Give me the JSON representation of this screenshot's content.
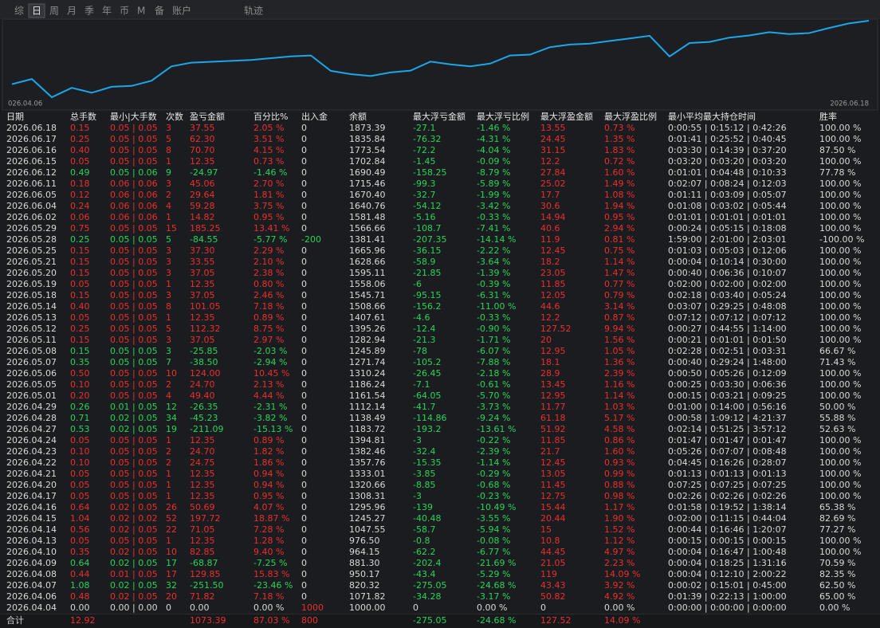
{
  "tabs": [
    "综",
    "日",
    "周",
    "月",
    "季",
    "年",
    "币",
    "M",
    "备",
    "账户"
  ],
  "active_tab": 1,
  "track_tab": "轨迹",
  "chart": {
    "start_label": "026.04.06",
    "end_label": "2026.06.18",
    "line_color": "#1ba6ea"
  },
  "colors": {
    "profit": "#e8302e",
    "loss": "#27d35a",
    "neutral": "#d8d8d8"
  },
  "table": {
    "columns": [
      "日期",
      "总手数",
      "最小|大手数",
      "次数",
      "盈亏金额",
      "百分比%",
      "出入金",
      "余额",
      "最大浮亏金额",
      "最大浮亏比例",
      "最大浮盈金额",
      "最大浮盈比例",
      "最小平均最大持仓时间",
      "胜率"
    ],
    "rows": [
      [
        "2026.06.18",
        "0.15",
        "0.05 | 0.05",
        "3",
        "37.55",
        "2.05 %",
        "0",
        "1873.39",
        "-27.1",
        "-1.46 %",
        "13.55",
        "0.73 %",
        "0:00:55 | 0:15:12 | 0:42:26",
        "100.00 %"
      ],
      [
        "2026.06.17",
        "0.25",
        "0.05 | 0.05",
        "5",
        "62.30",
        "3.51 %",
        "0",
        "1835.84",
        "-76.32",
        "-4.31 %",
        "24.45",
        "1.35 %",
        "0:01:41 | 0:25:52 | 0:40:45",
        "100.00 %"
      ],
      [
        "2026.06.16",
        "0.40",
        "0.05 | 0.05",
        "8",
        "70.70",
        "4.15 %",
        "0",
        "1773.54",
        "-72.2",
        "-4.04 %",
        "31.15",
        "1.83 %",
        "0:03:30 | 0:14:39 | 0:37:20",
        "87.50 %"
      ],
      [
        "2026.06.15",
        "0.05",
        "0.05 | 0.05",
        "1",
        "12.35",
        "0.73 %",
        "0",
        "1702.84",
        "-1.45",
        "-0.09 %",
        "12.2",
        "0.72 %",
        "0:03:20 | 0:03:20 | 0:03:20",
        "100.00 %"
      ],
      [
        "2026.06.12",
        "0.49",
        "0.05 | 0.06",
        "9",
        "-24.97",
        "-1.46 %",
        "0",
        "1690.49",
        "-158.25",
        "-8.79 %",
        "27.84",
        "1.60 %",
        "0:01:01 | 0:04:48 | 0:10:33",
        "77.78 %"
      ],
      [
        "2026.06.11",
        "0.18",
        "0.06 | 0.06",
        "3",
        "45.06",
        "2.70 %",
        "0",
        "1715.46",
        "-99.3",
        "-5.89 %",
        "25.02",
        "1.49 %",
        "0:02:07 | 0:08:24 | 0:12:03",
        "100.00 %"
      ],
      [
        "2026.06.05",
        "0.12",
        "0.06 | 0.06",
        "2",
        "29.64",
        "1.81 %",
        "0",
        "1670.40",
        "-32.7",
        "-1.99 %",
        "17.7",
        "1.08 %",
        "0:01:11 | 0:03:09 | 0:05:07",
        "100.00 %"
      ],
      [
        "2026.06.04",
        "0.24",
        "0.06 | 0.06",
        "4",
        "59.28",
        "3.75 %",
        "0",
        "1640.76",
        "-54.12",
        "-3.42 %",
        "30.6",
        "1.94 %",
        "0:01:08 | 0:03:02 | 0:05:44",
        "100.00 %"
      ],
      [
        "2026.06.02",
        "0.06",
        "0.06 | 0.06",
        "1",
        "14.82",
        "0.95 %",
        "0",
        "1581.48",
        "-5.16",
        "-0.33 %",
        "14.94",
        "0.95 %",
        "0:01:01 | 0:01:01 | 0:01:01",
        "100.00 %"
      ],
      [
        "2026.05.29",
        "0.75",
        "0.05 | 0.05",
        "15",
        "185.25",
        "13.41 %",
        "0",
        "1566.66",
        "-108.7",
        "-7.41 %",
        "40.6",
        "2.94 %",
        "0:00:24 | 0:05:15 | 0:18:08",
        "100.00 %"
      ],
      [
        "2026.05.28",
        "0.25",
        "0.05 | 0.05",
        "5",
        "-84.55",
        "-5.77 %",
        "-200",
        "1381.41",
        "-207.35",
        "-14.14 %",
        "11.9",
        "0.81 %",
        "1:59:00 | 2:01:00 | 2:03:01",
        "-100.00 %"
      ],
      [
        "2026.05.25",
        "0.15",
        "0.05 | 0.05",
        "3",
        "37.30",
        "2.29 %",
        "0",
        "1665.96",
        "-36.15",
        "-2.22 %",
        "12.45",
        "0.75 %",
        "0:01:03 | 0:05:03 | 0:12:06",
        "100.00 %"
      ],
      [
        "2026.05.21",
        "0.15",
        "0.05 | 0.05",
        "3",
        "33.55",
        "2.10 %",
        "0",
        "1628.66",
        "-58.9",
        "-3.64 %",
        "18.2",
        "1.14 %",
        "0:00:04 | 0:10:14 | 0:30:00",
        "100.00 %"
      ],
      [
        "2026.05.20",
        "0.15",
        "0.05 | 0.05",
        "3",
        "37.05",
        "2.38 %",
        "0",
        "1595.11",
        "-21.85",
        "-1.39 %",
        "23.05",
        "1.47 %",
        "0:00:40 | 0:06:36 | 0:10:07",
        "100.00 %"
      ],
      [
        "2026.05.19",
        "0.05",
        "0.05 | 0.05",
        "1",
        "12.35",
        "0.80 %",
        "0",
        "1558.06",
        "-6",
        "-0.39 %",
        "11.85",
        "0.77 %",
        "0:02:00 | 0:02:00 | 0:02:00",
        "100.00 %"
      ],
      [
        "2026.05.18",
        "0.15",
        "0.05 | 0.05",
        "3",
        "37.05",
        "2.46 %",
        "0",
        "1545.71",
        "-95.15",
        "-6.31 %",
        "12.05",
        "0.79 %",
        "0:02:18 | 0:03:40 | 0:05:24",
        "100.00 %"
      ],
      [
        "2026.05.14",
        "0.40",
        "0.05 | 0.05",
        "8",
        "101.05",
        "7.18 %",
        "0",
        "1508.66",
        "-156.2",
        "-11.00 %",
        "44.6",
        "3.14 %",
        "0:03:07 | 0:29:25 | 0:48:08",
        "100.00 %"
      ],
      [
        "2026.05.13",
        "0.05",
        "0.05 | 0.05",
        "1",
        "12.35",
        "0.89 %",
        "0",
        "1407.61",
        "-4.6",
        "-0.33 %",
        "12.2",
        "0.87 %",
        "0:07:12 | 0:07:12 | 0:07:12",
        "100.00 %"
      ],
      [
        "2026.05.12",
        "0.25",
        "0.05 | 0.05",
        "5",
        "112.32",
        "8.75 %",
        "0",
        "1395.26",
        "-12.4",
        "-0.90 %",
        "127.52",
        "9.94 %",
        "0:00:27 | 0:44:55 | 1:14:00",
        "100.00 %"
      ],
      [
        "2026.05.11",
        "0.15",
        "0.05 | 0.05",
        "3",
        "37.05",
        "2.97 %",
        "0",
        "1282.94",
        "-21.3",
        "-1.71 %",
        "20",
        "1.56 %",
        "0:00:21 | 0:01:01 | 0:01:50",
        "100.00 %"
      ],
      [
        "2026.05.08",
        "0.15",
        "0.05 | 0.05",
        "3",
        "-25.85",
        "-2.03 %",
        "0",
        "1245.89",
        "-78",
        "-6.07 %",
        "12.95",
        "1.05 %",
        "0:02:28 | 0:02:51 | 0:03:31",
        "66.67 %"
      ],
      [
        "2026.05.07",
        "0.35",
        "0.05 | 0.05",
        "7",
        "-38.50",
        "-2.94 %",
        "0",
        "1271.74",
        "-105.2",
        "-7.88 %",
        "18.1",
        "1.36 %",
        "0:00:40 | 0:29:24 | 1:48:00",
        "71.43 %"
      ],
      [
        "2026.05.06",
        "0.50",
        "0.05 | 0.05",
        "10",
        "124.00",
        "10.45 %",
        "0",
        "1310.24",
        "-26.45",
        "-2.18 %",
        "28.9",
        "2.39 %",
        "0:00:50 | 0:05:26 | 0:12:09",
        "100.00 %"
      ],
      [
        "2026.05.05",
        "0.10",
        "0.05 | 0.05",
        "2",
        "24.70",
        "2.13 %",
        "0",
        "1186.24",
        "-7.1",
        "-0.61 %",
        "13.45",
        "1.16 %",
        "0:00:25 | 0:03:30 | 0:06:36",
        "100.00 %"
      ],
      [
        "2026.05.01",
        "0.20",
        "0.05 | 0.05",
        "4",
        "49.40",
        "4.44 %",
        "0",
        "1161.54",
        "-64.05",
        "-5.70 %",
        "12.95",
        "1.14 %",
        "0:00:15 | 0:03:21 | 0:09:25",
        "100.00 %"
      ],
      [
        "2026.04.29",
        "0.26",
        "0.01 | 0.05",
        "12",
        "-26.35",
        "-2.31 %",
        "0",
        "1112.14",
        "-41.7",
        "-3.73 %",
        "11.77",
        "1.03 %",
        "0:01:00 | 0:14:00 | 0:56:16",
        "50.00 %"
      ],
      [
        "2026.04.28",
        "0.71",
        "0.02 | 0.05",
        "34",
        "-45.23",
        "-3.82 %",
        "0",
        "1138.49",
        "-114.86",
        "-9.24 %",
        "61.18",
        "5.17 %",
        "0:00:58 | 1:09:12 | 4:21:37",
        "55.88 %"
      ],
      [
        "2026.04.27",
        "0.53",
        "0.02 | 0.05",
        "19",
        "-211.09",
        "-15.13 %",
        "0",
        "1183.72",
        "-193.2",
        "-13.61 %",
        "51.92",
        "4.58 %",
        "0:02:14 | 0:51:25 | 3:57:12",
        "52.63 %"
      ],
      [
        "2026.04.24",
        "0.05",
        "0.05 | 0.05",
        "1",
        "12.35",
        "0.89 %",
        "0",
        "1394.81",
        "-3",
        "-0.22 %",
        "11.85",
        "0.86 %",
        "0:01:47 | 0:01:47 | 0:01:47",
        "100.00 %"
      ],
      [
        "2026.04.23",
        "0.10",
        "0.05 | 0.05",
        "2",
        "24.70",
        "1.82 %",
        "0",
        "1382.46",
        "-32.4",
        "-2.39 %",
        "21.7",
        "1.60 %",
        "0:05:26 | 0:07:07 | 0:08:48",
        "100.00 %"
      ],
      [
        "2026.04.22",
        "0.10",
        "0.05 | 0.05",
        "2",
        "24.75",
        "1.86 %",
        "0",
        "1357.76",
        "-15.35",
        "-1.14 %",
        "12.45",
        "0.93 %",
        "0:04:45 | 0:16:26 | 0:28:07",
        "100.00 %"
      ],
      [
        "2026.04.21",
        "0.05",
        "0.05 | 0.05",
        "1",
        "12.35",
        "0.94 %",
        "0",
        "1333.01",
        "-3.85",
        "-0.29 %",
        "13.05",
        "0.99 %",
        "0:01:13 | 0:01:13 | 0:01:13",
        "100.00 %"
      ],
      [
        "2026.04.20",
        "0.05",
        "0.05 | 0.05",
        "1",
        "12.35",
        "0.94 %",
        "0",
        "1320.66",
        "-8.85",
        "-0.68 %",
        "11.45",
        "0.88 %",
        "0:07:25 | 0:07:25 | 0:07:25",
        "100.00 %"
      ],
      [
        "2026.04.17",
        "0.05",
        "0.05 | 0.05",
        "1",
        "12.35",
        "0.95 %",
        "0",
        "1308.31",
        "-3",
        "-0.23 %",
        "12.75",
        "0.98 %",
        "0:02:26 | 0:02:26 | 0:02:26",
        "100.00 %"
      ],
      [
        "2026.04.16",
        "0.64",
        "0.02 | 0.05",
        "26",
        "50.69",
        "4.07 %",
        "0",
        "1295.96",
        "-139",
        "-10.49 %",
        "15.44",
        "1.17 %",
        "0:01:58 | 0:19:52 | 1:38:14",
        "65.38 %"
      ],
      [
        "2026.04.15",
        "1.04",
        "0.02 | 0.02",
        "52",
        "197.72",
        "18.87 %",
        "0",
        "1245.27",
        "-40.48",
        "-3.55 %",
        "20.44",
        "1.90 %",
        "0:02:00 | 0:11:15 | 0:44:04",
        "82.69 %"
      ],
      [
        "2026.04.14",
        "0.56",
        "0.02 | 0.05",
        "22",
        "71.05",
        "7.28 %",
        "0",
        "1047.55",
        "-58.7",
        "-5.94 %",
        "15",
        "1.52 %",
        "0:00:44 | 0:16:46 | 1:20:07",
        "77.27 %"
      ],
      [
        "2026.04.13",
        "0.05",
        "0.05 | 0.05",
        "1",
        "12.35",
        "1.28 %",
        "0",
        "976.50",
        "-0.8",
        "-0.08 %",
        "10.8",
        "1.12 %",
        "0:00:15 | 0:00:15 | 0:00:15",
        "100.00 %"
      ],
      [
        "2026.04.10",
        "0.35",
        "0.02 | 0.05",
        "10",
        "82.85",
        "9.40 %",
        "0",
        "964.15",
        "-62.2",
        "-6.77 %",
        "44.45",
        "4.97 %",
        "0:00:04 | 0:16:47 | 1:00:48",
        "100.00 %"
      ],
      [
        "2026.04.09",
        "0.64",
        "0.02 | 0.05",
        "17",
        "-68.87",
        "-7.25 %",
        "0",
        "881.30",
        "-202.4",
        "-21.69 %",
        "21.05",
        "2.23 %",
        "0:00:04 | 0:18:25 | 1:31:16",
        "70.59 %"
      ],
      [
        "2026.04.08",
        "0.44",
        "0.01 | 0.05",
        "17",
        "129.85",
        "15.83 %",
        "0",
        "950.17",
        "-43.4",
        "-5.29 %",
        "119",
        "14.09 %",
        "0:00:04 | 0:12:10 | 2:00:22",
        "82.35 %"
      ],
      [
        "2026.04.07",
        "1.08",
        "0.02 | 0.05",
        "32",
        "-251.50",
        "-23.46 %",
        "0",
        "820.32",
        "-275.05",
        "-24.68 %",
        "43.43",
        "3.92 %",
        "0:00:02 | 0:15:01 | 0:45:00",
        "62.50 %"
      ],
      [
        "2026.04.06",
        "0.48",
        "0.02 | 0.05",
        "20",
        "71.82",
        "7.18 %",
        "0",
        "1071.82",
        "-34.28",
        "-3.17 %",
        "50.82",
        "4.92 %",
        "0:01:39 | 0:22:13 | 1:00:00",
        "65.00 %"
      ],
      [
        "2026.04.04",
        "0.00",
        "0.00 | 0.00",
        "0",
        "0.00",
        "0.00 %",
        "1000",
        "1000.00",
        "0",
        "0.00 %",
        "0",
        "0.00 %",
        "0:00:00 | 0:00:00 | 0:00:00",
        "0.00 %"
      ]
    ],
    "total": {
      "label": "合计",
      "cells": {
        "1": "12.92",
        "4": "1073.39",
        "5": "87.03 %",
        "6": "800",
        "8": "-275.05",
        "9": "-24.68 %",
        "10": "127.52",
        "11": "14.09 %"
      }
    }
  }
}
